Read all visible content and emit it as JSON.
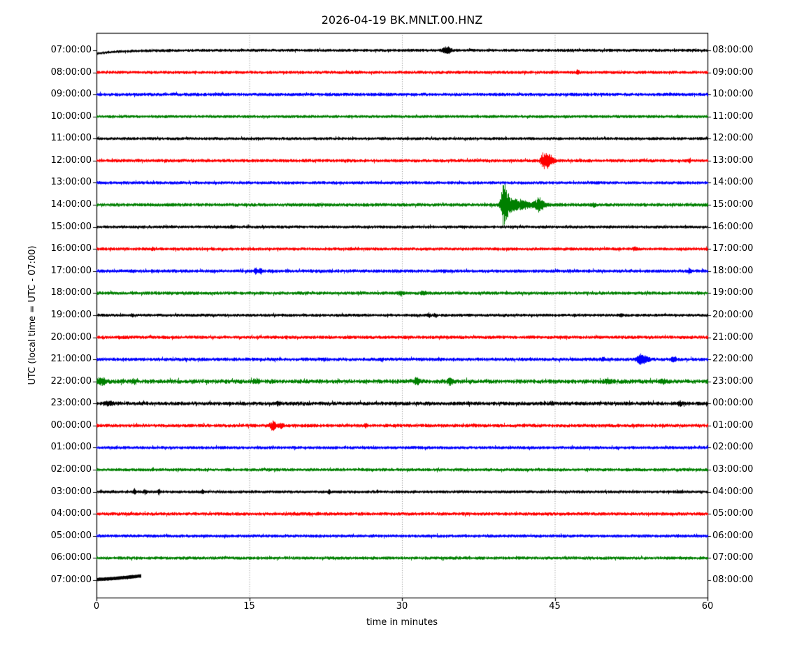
{
  "chart_data": {
    "type": "line",
    "variant": "seismogram-dayplot",
    "title": "2026-04-19 BK.MNLT.00.HNZ",
    "xlabel": "time in minutes",
    "ylabel": "UTC (local time = UTC - 07:00)",
    "xlim": [
      0,
      60
    ],
    "x_ticks": [
      0,
      15,
      30,
      45,
      60
    ],
    "grid_minutes": [
      15,
      30,
      45
    ],
    "grid_style": "dotted",
    "trace_color_cycle": [
      "#000000",
      "#ff0000",
      "#0000ff",
      "#008000"
    ],
    "minutes_per_line": 60,
    "traces": [
      {
        "left_label": "07:00:00",
        "right_label": "08:00:00",
        "color": "#000000",
        "noise": 1.1,
        "span": [
          0,
          60
        ],
        "offset": {
          "type": "exp",
          "a": 4.5,
          "tau": 2.5
        },
        "events": [
          {
            "t": 34.2,
            "amp": 4.5,
            "rise": 0.25,
            "decay": 0.3
          },
          {
            "t": 34.6,
            "amp": 3.5,
            "rise": 0.2,
            "decay": 0.25
          }
        ]
      },
      {
        "left_label": "08:00:00",
        "right_label": "09:00:00",
        "color": "#ff0000",
        "noise": 1.2,
        "span": [
          0,
          60
        ],
        "events": [
          {
            "t": 47.2,
            "amp": 4,
            "rise": 0.12,
            "decay": 0.15
          }
        ]
      },
      {
        "left_label": "09:00:00",
        "right_label": "10:00:00",
        "color": "#0000ff",
        "noise": 1.3,
        "span": [
          0,
          60
        ],
        "events": []
      },
      {
        "left_label": "10:00:00",
        "right_label": "11:00:00",
        "color": "#008000",
        "noise": 1.1,
        "span": [
          0,
          60
        ],
        "events": []
      },
      {
        "left_label": "11:00:00",
        "right_label": "12:00:00",
        "color": "#000000",
        "noise": 1.1,
        "span": [
          0,
          60
        ],
        "events": []
      },
      {
        "left_label": "12:00:00",
        "right_label": "13:00:00",
        "color": "#ff0000",
        "noise": 1.3,
        "span": [
          0,
          60
        ],
        "events": [
          {
            "t": 44.2,
            "amp": 11,
            "rise": 0.5,
            "decay": 0.55
          },
          {
            "t": 43.8,
            "amp": 5,
            "rise": 0.2,
            "decay": 0.2
          },
          {
            "t": 58.2,
            "amp": 2.5,
            "rise": 0.1,
            "decay": 0.15
          }
        ]
      },
      {
        "left_label": "13:00:00",
        "right_label": "14:00:00",
        "color": "#0000ff",
        "noise": 1.2,
        "span": [
          0,
          60
        ],
        "events": []
      },
      {
        "left_label": "14:00:00",
        "right_label": "15:00:00",
        "color": "#008000",
        "noise": 1.4,
        "span": [
          0,
          60
        ],
        "events": [
          {
            "t": 39.9,
            "amp": 26,
            "rise": 0.25,
            "decay": 0.5
          },
          {
            "t": 40.4,
            "amp": 8,
            "rise": 0.5,
            "decay": 2.5
          },
          {
            "t": 43.4,
            "amp": 8,
            "rise": 0.3,
            "decay": 0.45
          },
          {
            "t": 48.8,
            "amp": 2.2,
            "rise": 0.2,
            "decay": 0.25
          }
        ]
      },
      {
        "left_label": "15:00:00",
        "right_label": "16:00:00",
        "color": "#000000",
        "noise": 1.1,
        "span": [
          0,
          60
        ],
        "events": [
          {
            "t": 13.2,
            "amp": 2.5,
            "rise": 0.12,
            "decay": 0.15
          }
        ]
      },
      {
        "left_label": "16:00:00",
        "right_label": "17:00:00",
        "color": "#ff0000",
        "noise": 1.2,
        "span": [
          0,
          60
        ],
        "events": [
          {
            "t": 5.5,
            "amp": 2,
            "rise": 0.12,
            "decay": 0.15
          },
          {
            "t": 52.8,
            "amp": 2.8,
            "rise": 0.15,
            "decay": 0.2
          }
        ]
      },
      {
        "left_label": "17:00:00",
        "right_label": "18:00:00",
        "color": "#0000ff",
        "noise": 1.3,
        "span": [
          0,
          60
        ],
        "events": [
          {
            "t": 15.6,
            "amp": 4,
            "rise": 0.15,
            "decay": 0.18
          },
          {
            "t": 16.1,
            "amp": 3.5,
            "rise": 0.15,
            "decay": 0.18
          },
          {
            "t": 58.2,
            "amp": 3.5,
            "rise": 0.12,
            "decay": 0.15
          }
        ]
      },
      {
        "left_label": "18:00:00",
        "right_label": "19:00:00",
        "color": "#008000",
        "noise": 1.3,
        "span": [
          0,
          60
        ],
        "events": [
          {
            "t": 29.8,
            "amp": 2.2,
            "rise": 0.2,
            "decay": 0.25
          },
          {
            "t": 32.0,
            "amp": 2.0,
            "rise": 0.2,
            "decay": 0.25
          }
        ]
      },
      {
        "left_label": "19:00:00",
        "right_label": "20:00:00",
        "color": "#000000",
        "noise": 1.1,
        "span": [
          0,
          60
        ],
        "events": [
          {
            "t": 3.5,
            "amp": 2,
            "rise": 0.12,
            "decay": 0.15
          },
          {
            "t": 32.6,
            "amp": 2.8,
            "rise": 0.12,
            "decay": 0.15
          },
          {
            "t": 33.2,
            "amp": 2.2,
            "rise": 0.12,
            "decay": 0.15
          },
          {
            "t": 51.5,
            "amp": 2.2,
            "rise": 0.12,
            "decay": 0.15
          }
        ]
      },
      {
        "left_label": "20:00:00",
        "right_label": "21:00:00",
        "color": "#ff0000",
        "noise": 1.3,
        "span": [
          0,
          60
        ],
        "events": []
      },
      {
        "left_label": "21:00:00",
        "right_label": "22:00:00",
        "color": "#0000ff",
        "noise": 1.4,
        "span": [
          0,
          60
        ],
        "events": [
          {
            "t": 53.5,
            "amp": 7,
            "rise": 0.5,
            "decay": 0.6
          },
          {
            "t": 56.6,
            "amp": 3,
            "rise": 0.2,
            "decay": 0.25
          },
          {
            "t": 49.7,
            "amp": 2.2,
            "rise": 0.15,
            "decay": 0.2
          }
        ]
      },
      {
        "left_label": "22:00:00",
        "right_label": "23:00:00",
        "color": "#008000",
        "noise": 1.9,
        "span": [
          0,
          60
        ],
        "events": [
          {
            "t": 0.4,
            "amp": 4.5,
            "rise": 0.3,
            "decay": 0.5
          },
          {
            "t": 3.6,
            "amp": 2.5,
            "rise": 0.2,
            "decay": 0.3
          },
          {
            "t": 15.6,
            "amp": 2.8,
            "rise": 0.2,
            "decay": 0.3
          },
          {
            "t": 31.4,
            "amp": 4.2,
            "rise": 0.3,
            "decay": 0.35
          },
          {
            "t": 34.7,
            "amp": 3.8,
            "rise": 0.25,
            "decay": 0.3
          },
          {
            "t": 50.2,
            "amp": 2.8,
            "rise": 0.3,
            "decay": 0.4
          },
          {
            "t": 55.6,
            "amp": 2.2,
            "rise": 0.2,
            "decay": 0.3
          }
        ]
      },
      {
        "left_label": "23:00:00",
        "right_label": "00:00:00",
        "color": "#000000",
        "noise": 1.6,
        "span": [
          0,
          60
        ],
        "events": [
          {
            "t": 1.2,
            "amp": 2.6,
            "rise": 0.3,
            "decay": 0.4
          },
          {
            "t": 17.8,
            "amp": 2.2,
            "rise": 0.2,
            "decay": 0.3
          },
          {
            "t": 44.6,
            "amp": 2.0,
            "rise": 0.2,
            "decay": 0.3
          },
          {
            "t": 57.2,
            "amp": 2.2,
            "rise": 0.2,
            "decay": 0.3
          }
        ]
      },
      {
        "left_label": "00:00:00",
        "right_label": "01:00:00",
        "color": "#ff0000",
        "noise": 1.4,
        "span": [
          0,
          60
        ],
        "events": [
          {
            "t": 17.3,
            "amp": 6,
            "rise": 0.3,
            "decay": 0.35
          },
          {
            "t": 18.1,
            "amp": 3.5,
            "rise": 0.2,
            "decay": 0.25
          },
          {
            "t": 26.4,
            "amp": 2.2,
            "rise": 0.12,
            "decay": 0.15
          }
        ]
      },
      {
        "left_label": "01:00:00",
        "right_label": "02:00:00",
        "color": "#0000ff",
        "noise": 1.2,
        "span": [
          0,
          60
        ],
        "events": []
      },
      {
        "left_label": "02:00:00",
        "right_label": "03:00:00",
        "color": "#008000",
        "noise": 1.2,
        "span": [
          0,
          60
        ],
        "events": []
      },
      {
        "left_label": "03:00:00",
        "right_label": "04:00:00",
        "color": "#000000",
        "noise": 1.1,
        "span": [
          0,
          60
        ],
        "events": [
          {
            "t": 3.7,
            "amp": 4,
            "rise": 0.1,
            "decay": 0.12
          },
          {
            "t": 4.7,
            "amp": 2.8,
            "rise": 0.1,
            "decay": 0.12
          },
          {
            "t": 6.1,
            "amp": 3.2,
            "rise": 0.1,
            "decay": 0.12
          },
          {
            "t": 10.4,
            "amp": 2.8,
            "rise": 0.1,
            "decay": 0.12
          },
          {
            "t": 22.8,
            "amp": 2.6,
            "rise": 0.1,
            "decay": 0.12
          }
        ]
      },
      {
        "left_label": "04:00:00",
        "right_label": "05:00:00",
        "color": "#ff0000",
        "noise": 1.3,
        "span": [
          0,
          60
        ],
        "events": []
      },
      {
        "left_label": "05:00:00",
        "right_label": "06:00:00",
        "color": "#0000ff",
        "noise": 1.2,
        "span": [
          0,
          60
        ],
        "events": []
      },
      {
        "left_label": "06:00:00",
        "right_label": "07:00:00",
        "color": "#008000",
        "noise": 1.2,
        "span": [
          0,
          60
        ],
        "events": []
      },
      {
        "left_label": "07:00:00",
        "right_label": "08:00:00",
        "color": "#000000",
        "noise": 0.5,
        "span": [
          0,
          4.3
        ],
        "thick": 2.0,
        "offset": {
          "type": "linear",
          "from": -1,
          "to": -6
        },
        "events": []
      }
    ]
  }
}
